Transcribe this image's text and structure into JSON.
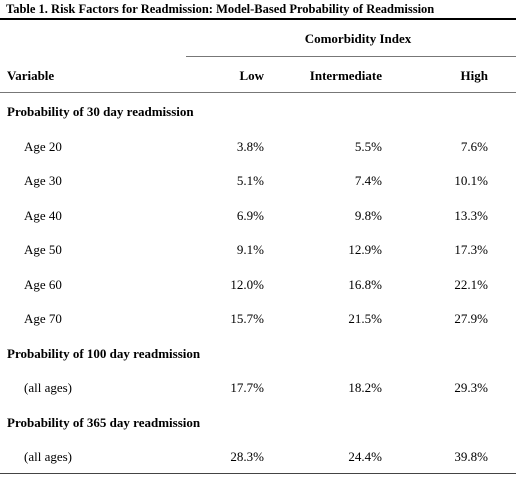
{
  "table": {
    "title": "Table 1. Risk Factors for Readmission: Model-Based Probability of Readmission",
    "group_header": "Comorbidity Index",
    "columns": [
      "Variable",
      "Low",
      "Intermediate",
      "High"
    ],
    "sections": [
      {
        "label": "Probability of 30 day readmission",
        "rows": [
          {
            "label": "Age 20",
            "low": "3.8%",
            "intermediate": "5.5%",
            "high": "7.6%"
          },
          {
            "label": "Age 30",
            "low": "5.1%",
            "intermediate": "7.4%",
            "high": "10.1%"
          },
          {
            "label": "Age 40",
            "low": "6.9%",
            "intermediate": "9.8%",
            "high": "13.3%"
          },
          {
            "label": "Age 50",
            "low": "9.1%",
            "intermediate": "12.9%",
            "high": "17.3%"
          },
          {
            "label": "Age 60",
            "low": "12.0%",
            "intermediate": "16.8%",
            "high": "22.1%"
          },
          {
            "label": "Age 70",
            "low": "15.7%",
            "intermediate": "21.5%",
            "high": "27.9%"
          }
        ]
      },
      {
        "label": "Probability of 100 day readmission",
        "rows": [
          {
            "label": "(all ages)",
            "low": "17.7%",
            "intermediate": "18.2%",
            "high": "29.3%"
          }
        ]
      },
      {
        "label": "Probability of 365 day readmission",
        "rows": [
          {
            "label": "(all ages)",
            "low": "28.3%",
            "intermediate": "24.4%",
            "high": "39.8%"
          }
        ]
      }
    ]
  }
}
